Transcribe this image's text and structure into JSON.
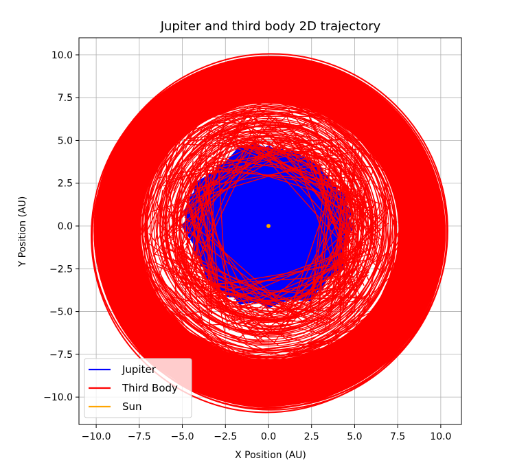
{
  "chart_data": {
    "type": "line",
    "title": "Jupiter and third body 2D trajectory",
    "xlabel": "X Position (AU)",
    "ylabel": "Y Position (AU)",
    "xlim": [
      -11.0,
      11.2
    ],
    "ylim": [
      -11.6,
      11.0
    ],
    "xticks": [
      -10.0,
      -7.5,
      -5.0,
      -2.5,
      0.0,
      2.5,
      5.0,
      7.5,
      10.0
    ],
    "yticks": [
      -10.0,
      -7.5,
      -5.0,
      -2.5,
      0.0,
      2.5,
      5.0,
      7.5,
      10.0
    ],
    "xtick_labels": [
      "−10.0",
      "−7.5",
      "−5.0",
      "−2.5",
      "0.0",
      "2.5",
      "5.0",
      "7.5",
      "10.0"
    ],
    "ytick_labels": [
      "−10.0",
      "−7.5",
      "−5.0",
      "−2.5",
      "0.0",
      "2.5",
      "5.0",
      "7.5",
      "10.0"
    ],
    "grid": true,
    "legend_position": "lower-left",
    "series": [
      {
        "name": "Jupiter",
        "color": "#0000ff",
        "orbit_radius_range": [
          4.5,
          5.5
        ]
      },
      {
        "name": "Third Body",
        "color": "#ff0000",
        "orbit_radius_range": [
          5.0,
          10.2
        ],
        "dense_band_radius_range": [
          7.5,
          10.2
        ]
      },
      {
        "name": "Sun",
        "color": "#ffa500",
        "x": [
          0.0
        ],
        "y": [
          0.0
        ]
      }
    ]
  }
}
